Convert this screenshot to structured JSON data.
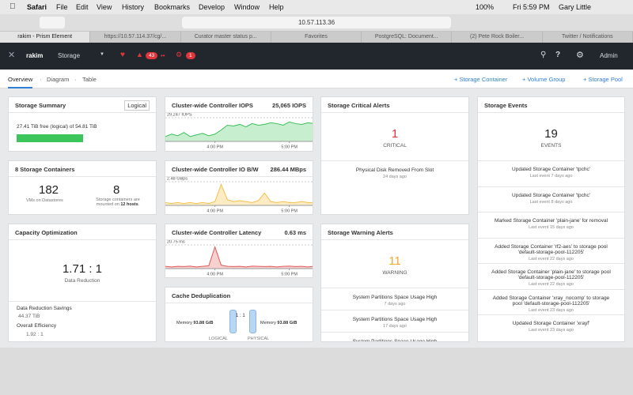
{
  "menubar": {
    "app": "Safari",
    "items": [
      "File",
      "Edit",
      "View",
      "History",
      "Bookmarks",
      "Develop",
      "Window",
      "Help"
    ],
    "battery": "100%",
    "clock": "Fri 5:59 PM",
    "user": "Gary Little"
  },
  "browser": {
    "url": "10.57.113.36",
    "tabs": [
      "rakim - Prism Element",
      "https://10.57.114.37/cg/...",
      "Curator master status p...",
      "Favorites",
      "PostgreSQL: Document...",
      "(2) Pete Rock Boiler...",
      "Twitter / Notifications"
    ]
  },
  "header": {
    "cluster": "rakim",
    "section": "Storage",
    "alert_count": "43",
    "critical_count": "1",
    "help": "?",
    "user": "Admin"
  },
  "subnav": {
    "views": [
      "Overview",
      "Diagram",
      "Table"
    ],
    "separator": "·",
    "actions": [
      "+ Storage Container",
      "+ Volume Group",
      "+ Storage Pool"
    ]
  },
  "summary": {
    "title": "Storage Summary",
    "mode": "Logical",
    "capacity": "27.41 TiB free (logical) of 54.81 TiB"
  },
  "containers": {
    "title": "8 Storage Containers",
    "vms": "182",
    "vms_label": "VMs on Datastores",
    "count": "8",
    "mounted_pre": "Storage containers are mounted on ",
    "hosts": "12 hosts",
    "mounted_post": "."
  },
  "capacity": {
    "title": "Capacity Optimization",
    "ratio": "1.71 : 1",
    "ratio_label": "Data Reduction",
    "savings_label": "Data Reduction Savings",
    "savings": "44.37 TiB",
    "efficiency_label": "Overall Efficiency",
    "efficiency": "1.92 : 1"
  },
  "charts": [
    {
      "type": "area",
      "title": "Cluster-wide Controller IOPS",
      "headline": "25,065 IOPS",
      "color": "#3cbf5a",
      "fill": "#c7efcf",
      "values": [
        6000,
        9000,
        7000,
        11000,
        6000,
        8000,
        10000,
        7000,
        9000,
        14000,
        20000,
        19000,
        21000,
        18000,
        22000,
        20000,
        21000,
        23000,
        22000,
        20000,
        24000,
        22000,
        21000,
        23000,
        22000
      ],
      "xlim": [
        0,
        24
      ],
      "xticks": [
        {
          "value": 8,
          "label": "4:00 PM"
        },
        {
          "value": 20,
          "label": "5:00 PM"
        }
      ],
      "ylim": [
        0,
        29247
      ],
      "yticks": [
        {
          "value": 29247,
          "label": "29,247 IOPS"
        }
      ]
    },
    {
      "type": "area",
      "title": "Cluster-wide Controller IO B/W",
      "headline": "286.44 MBps",
      "color": "#f2c14e",
      "fill": "#fbecc4",
      "values": [
        0.3,
        0.2,
        0.3,
        0.2,
        0.3,
        0.2,
        0.3,
        0.2,
        0.4,
        2.2,
        0.6,
        0.4,
        0.5,
        0.4,
        0.3,
        0.5,
        1.3,
        0.4,
        0.3,
        0.4,
        0.3,
        0.3,
        0.4,
        0.3,
        0.3
      ],
      "xlim": [
        0,
        24
      ],
      "xticks": [
        {
          "value": 8,
          "label": "4:00 PM"
        },
        {
          "value": 20,
          "label": "5:00 PM"
        }
      ],
      "ylim": [
        0,
        2.48
      ],
      "yticks": [
        {
          "value": 2.48,
          "label": "2.48 GBps"
        }
      ]
    },
    {
      "type": "area",
      "title": "Cluster-wide Controller Latency",
      "headline": "0.63 ms",
      "color": "#e05a5a",
      "fill": "#f7d0d0",
      "values": [
        2,
        1.5,
        2,
        1.8,
        2.2,
        1.5,
        2,
        2.5,
        19,
        3,
        2,
        1.8,
        2,
        1.5,
        2.2,
        2,
        1.8,
        2,
        1.5,
        2,
        2.2,
        1.8,
        2,
        1.5,
        2
      ],
      "xlim": [
        0,
        24
      ],
      "xticks": [
        {
          "value": 8,
          "label": "4:00 PM"
        },
        {
          "value": 20,
          "label": "5:00 PM"
        }
      ],
      "ylim": [
        0,
        20.75
      ],
      "yticks": [
        {
          "value": 20.75,
          "label": "20.75 ms"
        }
      ]
    }
  ],
  "dedup": {
    "title": "Cache Deduplication",
    "memory_label": "Memory",
    "logical_memory": "93.88 GiB",
    "physical_memory": "93.88 GiB",
    "ratio": "1 : 1",
    "logical": "LOGICAL",
    "physical": "PHYSICAL"
  },
  "critical": {
    "title": "Storage Critical Alerts",
    "count": "1",
    "count_label": "CRITICAL",
    "alerts": [
      {
        "text": "Physical Disk Removed From Slot",
        "time": "24 days ago"
      }
    ]
  },
  "warning": {
    "title": "Storage Warning Alerts",
    "count": "11",
    "count_label": "WARNING",
    "alerts": [
      {
        "text": "System Partitions Space Usage High",
        "time": "7 days ago"
      },
      {
        "text": "System Partitions Space Usage High",
        "time": "17 days ago"
      },
      {
        "text": "System Partitions Space Usage High"
      }
    ]
  },
  "events": {
    "title": "Storage Events",
    "count": "19",
    "count_label": "EVENTS",
    "items": [
      {
        "text": "Updated Storage Container 'tpchc'",
        "time": "Last event 7 days ago"
      },
      {
        "text": "Updated Storage Container 'tpchc'",
        "time": "Last event 8 days ago"
      },
      {
        "text": "Marked Storage Container 'plain-jane' for removal",
        "time": "Last event 15 days ago"
      },
      {
        "text": "Added Storage Container 'rf2-aes' to storage pool 'default-storage-pool-112205'",
        "time": "Last event 22 days ago"
      },
      {
        "text": "Added Storage Container 'plain-jane' to storage pool 'default-storage-pool-112205'",
        "time": "Last event 22 days ago"
      },
      {
        "text": "Added Storage Container 'xray_nocomp' to storage pool 'default-storage-pool-112205'",
        "time": "Last event 23 days ago"
      },
      {
        "text": "Updated Storage Container 'xrayf'",
        "time": "Last event 23 days ago"
      }
    ]
  }
}
